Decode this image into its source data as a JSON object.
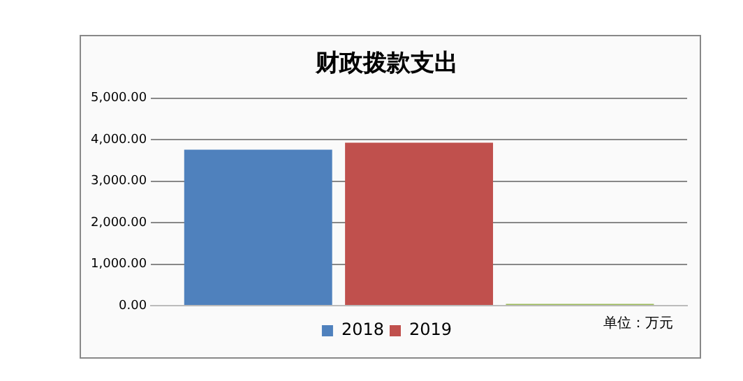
{
  "chart_data": {
    "type": "bar",
    "title": "财政拨款支出",
    "categories": [
      null
    ],
    "series": [
      {
        "name": "2018",
        "color": "#4f81bd",
        "values": [
          3760
        ]
      },
      {
        "name": "2019",
        "color": "#c0504d",
        "values": [
          3930
        ]
      },
      {
        "color": "#9bbb59",
        "values": [
          40
        ]
      }
    ],
    "ylim": [
      0,
      5000
    ],
    "yticks": [
      {
        "value": 0,
        "label": "0.00"
      },
      {
        "value": 1000,
        "label": "1,000.00"
      },
      {
        "value": 2000,
        "label": "2,000.00"
      },
      {
        "value": 3000,
        "label": "3,000.00"
      },
      {
        "value": 4000,
        "label": "4,000.00"
      },
      {
        "value": 5000,
        "label": "5,000.00"
      }
    ],
    "grid": "y",
    "legend": "bottom",
    "annotations": [
      "单位：万元"
    ]
  }
}
